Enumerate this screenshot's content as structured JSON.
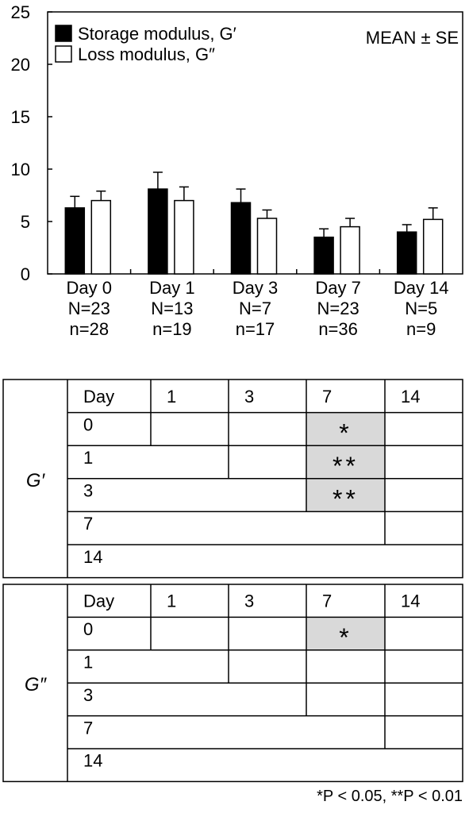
{
  "chart_data": {
    "type": "bar",
    "categories": [
      "Day 0",
      "Day 1",
      "Day 3",
      "Day 7",
      "Day 14"
    ],
    "N_labels": [
      "N=23",
      "N=13",
      "N=7",
      "N=23",
      "N=5"
    ],
    "n_labels": [
      "n=28",
      "n=19",
      "n=17",
      "n=36",
      "n=9"
    ],
    "ylim": [
      0,
      25
    ],
    "yticks": [
      0,
      5,
      10,
      15,
      20,
      25
    ],
    "annotation": "MEAN ± SE",
    "legend_position": "top-left",
    "grid": false,
    "series": [
      {
        "name": "Storage modulus, G′",
        "fill": "#000000",
        "values": [
          6.3,
          8.1,
          6.8,
          3.5,
          4.0
        ],
        "errors": [
          1.1,
          1.6,
          1.3,
          0.8,
          0.7
        ]
      },
      {
        "name": "Loss modulus, G″",
        "fill": "#ffffff",
        "values": [
          7.0,
          7.0,
          5.3,
          4.5,
          5.2
        ],
        "errors": [
          0.9,
          1.3,
          0.8,
          0.8,
          1.1
        ]
      }
    ]
  },
  "tables": [
    {
      "label": "G′",
      "header": [
        "Day",
        "1",
        "3",
        "7",
        "14"
      ],
      "rows": [
        "0",
        "1",
        "3",
        "7",
        "14"
      ],
      "marks": [
        {
          "row": "0",
          "col": "7",
          "text": "*"
        },
        {
          "row": "1",
          "col": "7",
          "text": "**"
        },
        {
          "row": "3",
          "col": "7",
          "text": "**"
        }
      ]
    },
    {
      "label": "G″",
      "header": [
        "Day",
        "1",
        "3",
        "7",
        "14"
      ],
      "rows": [
        "0",
        "1",
        "3",
        "7",
        "14"
      ],
      "marks": [
        {
          "row": "0",
          "col": "7",
          "text": "*"
        }
      ]
    }
  ],
  "colors": {
    "highlight": "#d9d9d9",
    "line": "#000000"
  },
  "footnote": "*P < 0.05, **P < 0.01"
}
